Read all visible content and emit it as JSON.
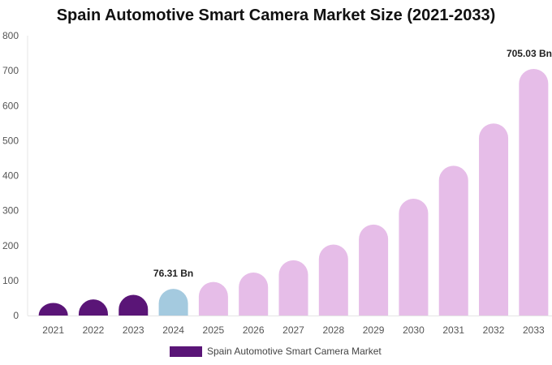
{
  "chart_data": {
    "type": "bar",
    "title": "Spain Automotive Smart Camera Market Size (2021-2033)",
    "xlabel": "",
    "ylabel": "",
    "categories": [
      "2021",
      "2022",
      "2023",
      "2024",
      "2025",
      "2026",
      "2027",
      "2028",
      "2029",
      "2030",
      "2031",
      "2032",
      "2033"
    ],
    "series": [
      {
        "name": "Spain Automotive Smart Camera Market",
        "values": [
          36,
          46,
          59,
          76.31,
          96,
          123,
          158,
          203,
          260,
          334,
          428,
          549,
          705.03
        ]
      }
    ],
    "ylim": [
      0,
      800
    ],
    "yticks": [
      0,
      100,
      200,
      300,
      400,
      500,
      600,
      700,
      800
    ],
    "grid": false,
    "legend_position": "bottom",
    "bar_colors": {
      "historical": "#5a1577",
      "base_year": "#a4cadf",
      "forecast": "#e6bde8"
    },
    "historical_count": 3,
    "base_year_index": 3,
    "annotations": [
      {
        "category": "2024",
        "text": "76.31 Bn"
      },
      {
        "category": "2033",
        "text": "705.03 Bn"
      }
    ],
    "legend_color": "#5a1577"
  }
}
